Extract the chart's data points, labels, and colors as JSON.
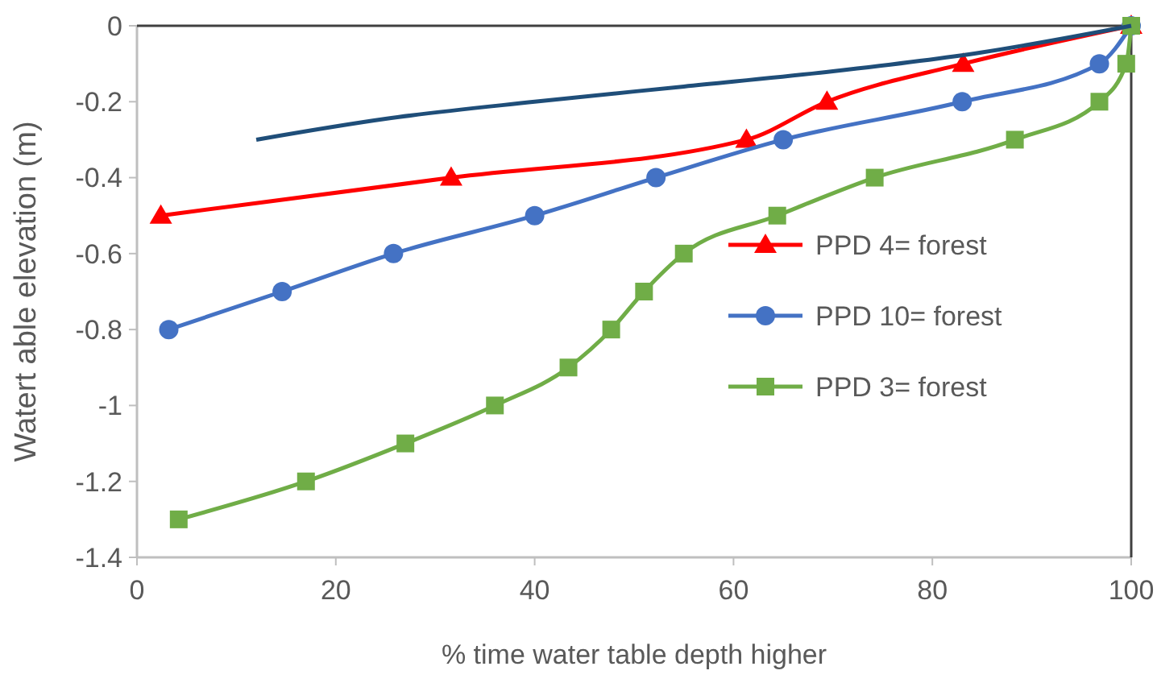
{
  "chart_data": {
    "type": "line",
    "xlabel": "% time water table depth higher",
    "ylabel": "Watert able elevation (m)",
    "xlim": [
      0,
      100
    ],
    "xticks": [
      0,
      20,
      40,
      60,
      80,
      100
    ],
    "ylim": [
      -1.4,
      0
    ],
    "yticks": [
      0,
      -0.2,
      -0.4,
      -0.6,
      -0.8,
      -1,
      -1.2,
      -1.4
    ],
    "grid": false,
    "legend": "right",
    "line_style": "solid",
    "series": [
      {
        "name": "PPD 4= forest",
        "color": "#ff0000",
        "marker": "triangle",
        "x": [
          2.4,
          31.6,
          61.3,
          69.4,
          83.1,
          100
        ],
        "values": [
          -0.5,
          -0.4,
          -0.3,
          -0.2,
          -0.1,
          0
        ]
      },
      {
        "name": "PPD 10= forest",
        "color": "#4472c4",
        "marker": "circle",
        "x": [
          3.2,
          14.6,
          25.8,
          40,
          52.2,
          65,
          83,
          96.8,
          100
        ],
        "values": [
          -0.8,
          -0.7,
          -0.6,
          -0.5,
          -0.4,
          -0.3,
          -0.2,
          -0.1,
          0
        ]
      },
      {
        "name": "PPD 3= forest",
        "color": "#70ad47",
        "marker": "square",
        "x": [
          4.2,
          17,
          27,
          36,
          43.4,
          47.7,
          51,
          55,
          64.4,
          74.2,
          88.3,
          96.8,
          99.5,
          100
        ],
        "values": [
          -1.3,
          -1.2,
          -1.1,
          -1,
          -0.9,
          -0.8,
          -0.7,
          -0.6,
          -0.5,
          -0.4,
          -0.3,
          -0.2,
          -0.1,
          0
        ]
      },
      {
        "color": "#1f4e79",
        "marker": "none",
        "x": [
          12,
          25,
          40,
          55,
          70,
          85,
          100
        ],
        "values": [
          -0.3,
          -0.245,
          -0.2,
          -0.16,
          -0.12,
          -0.07,
          0
        ]
      }
    ]
  }
}
